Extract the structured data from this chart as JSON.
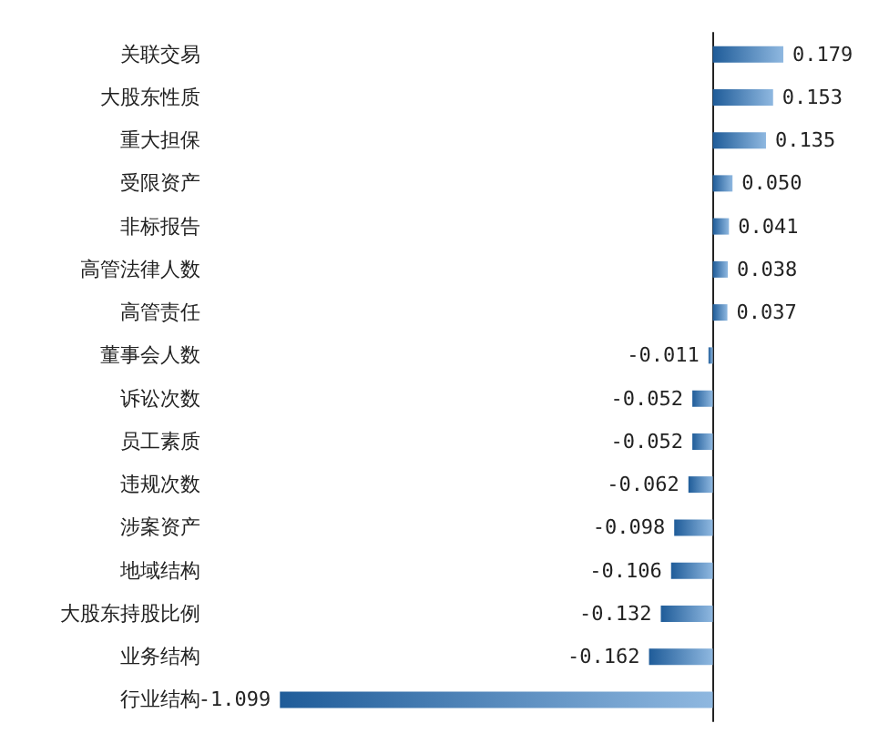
{
  "chart_data": {
    "type": "bar",
    "orientation": "horizontal",
    "color": "#1f5c99",
    "categories": [
      "关联交易",
      "大股东性质",
      "重大担保",
      "受限资产",
      "非标报告",
      "高管法律人数",
      "高管责任",
      "董事会人数",
      "诉讼次数",
      "员工素质",
      "违规次数",
      "涉案资产",
      "地域结构",
      "大股东持股比例",
      "业务结构",
      "行业结构"
    ],
    "values": [
      0.179,
      0.153,
      0.135,
      0.05,
      0.041,
      0.038,
      0.037,
      -0.011,
      -0.052,
      -0.052,
      -0.062,
      -0.098,
      -0.106,
      -0.132,
      -0.162,
      -1.099
    ],
    "value_labels": [
      "0.179",
      "0.153",
      "0.135",
      "0.050",
      "0.041",
      "0.038",
      "0.037",
      "-0.011",
      "-0.052",
      "-0.052",
      "-0.062",
      "-0.098",
      "-0.106",
      "-0.132",
      "-0.162",
      "-1.099"
    ]
  }
}
